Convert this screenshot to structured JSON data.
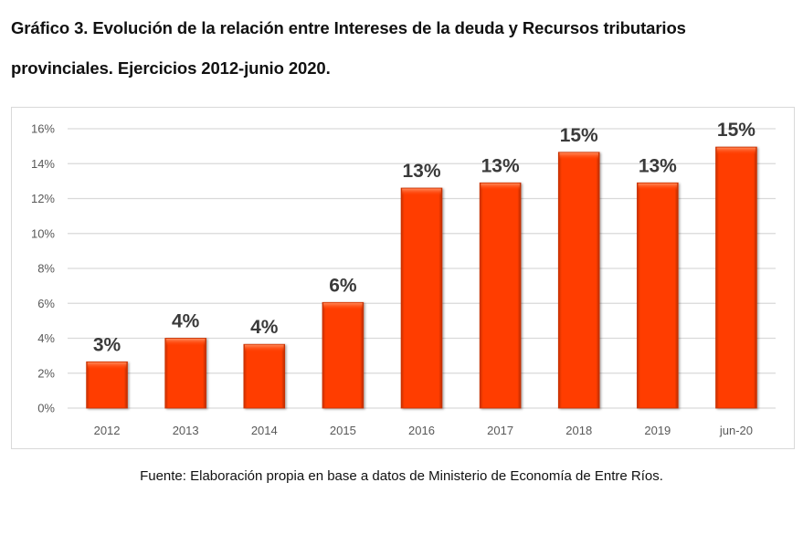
{
  "title": {
    "line1": "Gráfico 3. Evolución de la relación entre Intereses de la deuda y Recursos tributarios",
    "line2": "provinciales. Ejercicios 2012-junio 2020."
  },
  "source": "Fuente: Elaboración propia en base a datos de Ministerio de Economía de Entre Ríos.",
  "colors": {
    "bar": "#ff3d00",
    "bar_edge": "#c83000",
    "bar_highlight": "#ff7a4a",
    "grid": "#d9d9d9"
  },
  "chart_data": {
    "type": "bar",
    "title": "Gráfico 3. Evolución de la relación entre Intereses de la deuda y Recursos tributarios provinciales. Ejercicios 2012-junio 2020.",
    "xlabel": "",
    "ylabel": "",
    "categories": [
      "2012",
      "2013",
      "2014",
      "2015",
      "2016",
      "2017",
      "2018",
      "2019",
      "jun-20"
    ],
    "values": [
      2.65,
      4.0,
      3.65,
      6.05,
      12.6,
      12.9,
      14.65,
      12.9,
      14.95
    ],
    "data_labels": [
      "3%",
      "4%",
      "4%",
      "6%",
      "13%",
      "13%",
      "15%",
      "13%",
      "15%"
    ],
    "ylim": [
      0,
      16
    ],
    "yticks": [
      0,
      2,
      4,
      6,
      8,
      10,
      12,
      14,
      16
    ],
    "ytick_labels": [
      "0%",
      "2%",
      "4%",
      "6%",
      "8%",
      "10%",
      "12%",
      "14%",
      "16%"
    ],
    "grid": true,
    "legend": "none",
    "units": "percent"
  }
}
